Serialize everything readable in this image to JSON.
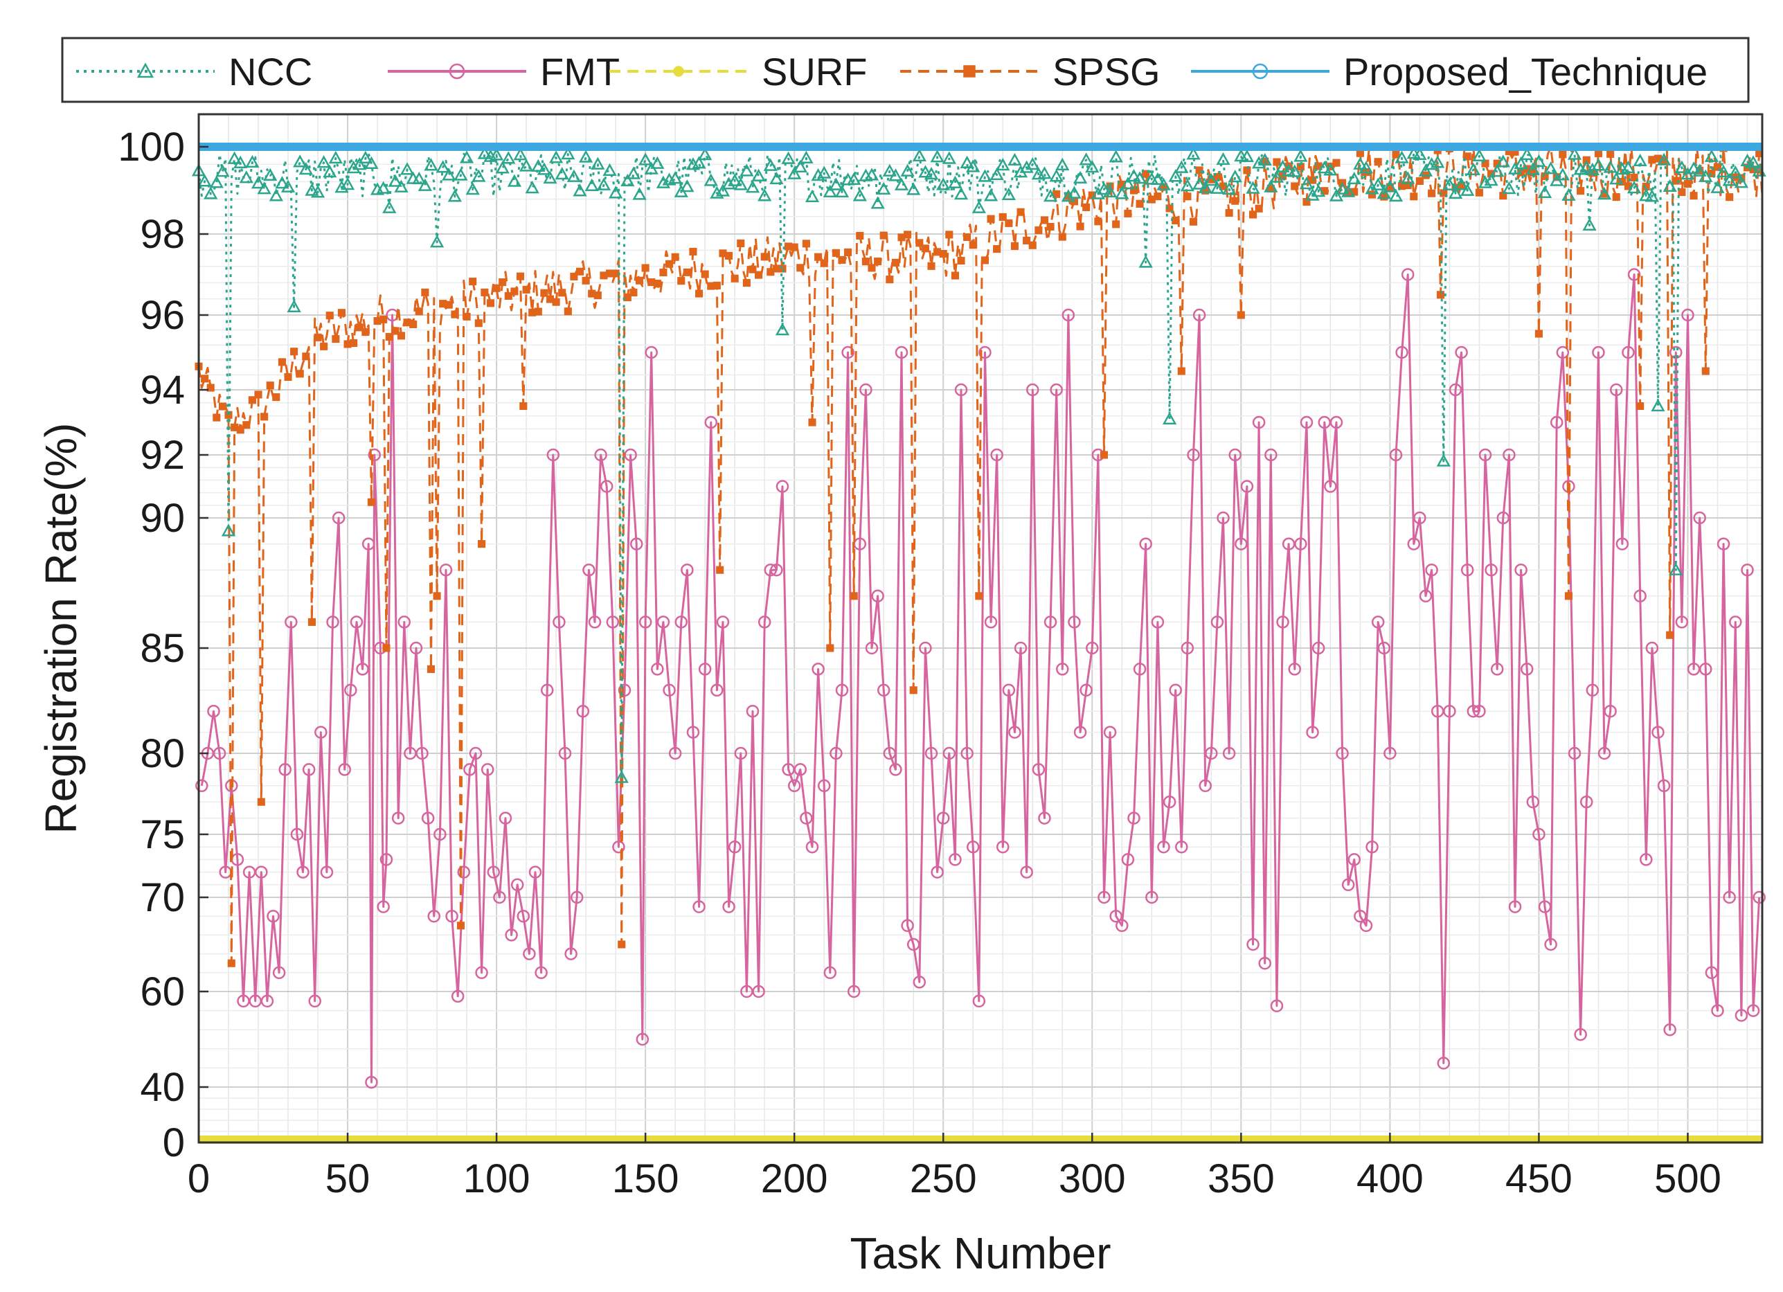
{
  "chart_data": {
    "type": "line",
    "title": "",
    "xlabel": "Task Number",
    "ylabel": "Registration Rate(%)",
    "xlim": [
      0,
      525
    ],
    "x_ticks": [
      0,
      50,
      100,
      150,
      200,
      250,
      300,
      350,
      400,
      450,
      500
    ],
    "y_ticks": [
      0,
      40,
      60,
      70,
      75,
      80,
      85,
      90,
      92,
      94,
      96,
      98,
      100
    ],
    "y_scale": "nonlinear (expanded near 100)",
    "grid": true,
    "legend_position": "top",
    "series": [
      {
        "name": "NCC",
        "color": "#2ca58d",
        "line": "dotted",
        "marker": "triangle",
        "base": 99.4,
        "spread": 0.5,
        "dips": [
          [
            10,
            89.5
          ],
          [
            32,
            96.2
          ],
          [
            64,
            98.6
          ],
          [
            80,
            97.8
          ],
          [
            142,
            78.5
          ],
          [
            196,
            95.6
          ],
          [
            228,
            98.7
          ],
          [
            262,
            98.6
          ],
          [
            318,
            97.3
          ],
          [
            326,
            93.1
          ],
          [
            418,
            91.8
          ],
          [
            467,
            98.2
          ],
          [
            490,
            93.5
          ],
          [
            496,
            88.0
          ]
        ]
      },
      {
        "name": "FMT",
        "color": "#d6649e",
        "line": "solid",
        "marker": "circle",
        "points": [
          [
            1,
            78
          ],
          [
            3,
            80
          ],
          [
            5,
            82
          ],
          [
            7,
            80
          ],
          [
            9,
            72
          ],
          [
            11,
            78
          ],
          [
            13,
            73
          ],
          [
            15,
            58
          ],
          [
            17,
            72
          ],
          [
            19,
            58
          ],
          [
            21,
            72
          ],
          [
            23,
            58
          ],
          [
            25,
            68
          ],
          [
            27,
            62
          ],
          [
            29,
            79
          ],
          [
            31,
            86
          ],
          [
            33,
            75
          ],
          [
            35,
            72
          ],
          [
            37,
            79
          ],
          [
            39,
            58
          ],
          [
            41,
            81
          ],
          [
            43,
            72
          ],
          [
            45,
            86
          ],
          [
            47,
            90
          ],
          [
            49,
            79
          ],
          [
            51,
            83
          ],
          [
            53,
            86
          ],
          [
            55,
            84
          ],
          [
            57,
            89
          ],
          [
            58,
            41
          ],
          [
            59,
            92
          ],
          [
            61,
            85
          ],
          [
            62,
            69
          ],
          [
            63,
            73
          ],
          [
            65,
            96
          ],
          [
            67,
            76
          ],
          [
            69,
            86
          ],
          [
            71,
            80
          ],
          [
            73,
            85
          ],
          [
            75,
            80
          ],
          [
            77,
            76
          ],
          [
            79,
            68
          ],
          [
            81,
            75
          ],
          [
            83,
            88
          ],
          [
            85,
            68
          ],
          [
            87,
            59
          ],
          [
            89,
            72
          ],
          [
            91,
            79
          ],
          [
            93,
            80
          ],
          [
            95,
            62
          ],
          [
            97,
            79
          ],
          [
            99,
            72
          ],
          [
            101,
            70
          ],
          [
            103,
            76
          ],
          [
            105,
            66
          ],
          [
            107,
            71
          ],
          [
            109,
            68
          ],
          [
            111,
            64
          ],
          [
            113,
            72
          ],
          [
            115,
            62
          ],
          [
            117,
            83
          ],
          [
            119,
            92
          ],
          [
            121,
            86
          ],
          [
            123,
            80
          ],
          [
            125,
            64
          ],
          [
            127,
            70
          ],
          [
            129,
            82
          ],
          [
            131,
            88
          ],
          [
            133,
            86
          ],
          [
            135,
            92
          ],
          [
            137,
            91
          ],
          [
            139,
            86
          ],
          [
            141,
            74
          ],
          [
            143,
            83
          ],
          [
            145,
            92
          ],
          [
            147,
            89
          ],
          [
            149,
            50
          ],
          [
            150,
            86
          ],
          [
            152,
            95
          ],
          [
            154,
            84
          ],
          [
            156,
            86
          ],
          [
            158,
            83
          ],
          [
            160,
            80
          ],
          [
            162,
            86
          ],
          [
            164,
            88
          ],
          [
            166,
            81
          ],
          [
            168,
            69
          ],
          [
            170,
            84
          ],
          [
            172,
            93
          ],
          [
            174,
            83
          ],
          [
            176,
            86
          ],
          [
            178,
            69
          ],
          [
            180,
            74
          ],
          [
            182,
            80
          ],
          [
            184,
            60
          ],
          [
            186,
            82
          ],
          [
            188,
            60
          ],
          [
            190,
            86
          ],
          [
            192,
            88
          ],
          [
            194,
            88
          ],
          [
            196,
            91
          ],
          [
            198,
            79
          ],
          [
            200,
            78
          ],
          [
            202,
            79
          ],
          [
            204,
            76
          ],
          [
            206,
            74
          ],
          [
            208,
            84
          ],
          [
            210,
            78
          ],
          [
            212,
            62
          ],
          [
            214,
            80
          ],
          [
            216,
            83
          ],
          [
            218,
            95
          ],
          [
            220,
            60
          ],
          [
            222,
            89
          ],
          [
            224,
            94
          ],
          [
            226,
            85
          ],
          [
            228,
            87
          ],
          [
            230,
            83
          ],
          [
            232,
            80
          ],
          [
            234,
            79
          ],
          [
            236,
            95
          ],
          [
            238,
            67
          ],
          [
            240,
            65
          ],
          [
            242,
            61
          ],
          [
            244,
            85
          ],
          [
            246,
            80
          ],
          [
            248,
            72
          ],
          [
            250,
            76
          ],
          [
            252,
            80
          ],
          [
            254,
            73
          ],
          [
            256,
            94
          ],
          [
            258,
            80
          ],
          [
            260,
            74
          ],
          [
            262,
            58
          ],
          [
            264,
            95
          ],
          [
            266,
            86
          ],
          [
            268,
            92
          ],
          [
            270,
            74
          ],
          [
            272,
            83
          ],
          [
            274,
            81
          ],
          [
            276,
            85
          ],
          [
            278,
            72
          ],
          [
            280,
            94
          ],
          [
            282,
            79
          ],
          [
            284,
            76
          ],
          [
            286,
            86
          ],
          [
            288,
            94
          ],
          [
            290,
            84
          ],
          [
            292,
            96
          ],
          [
            294,
            86
          ],
          [
            296,
            81
          ],
          [
            298,
            83
          ],
          [
            300,
            85
          ],
          [
            302,
            92
          ],
          [
            304,
            70
          ],
          [
            306,
            81
          ],
          [
            308,
            68
          ],
          [
            310,
            67
          ],
          [
            312,
            73
          ],
          [
            314,
            76
          ],
          [
            316,
            84
          ],
          [
            318,
            89
          ],
          [
            320,
            70
          ],
          [
            322,
            86
          ],
          [
            324,
            74
          ],
          [
            326,
            77
          ],
          [
            328,
            83
          ],
          [
            330,
            74
          ],
          [
            332,
            85
          ],
          [
            334,
            92
          ],
          [
            336,
            96
          ],
          [
            338,
            78
          ],
          [
            340,
            80
          ],
          [
            342,
            86
          ],
          [
            344,
            90
          ],
          [
            346,
            80
          ],
          [
            348,
            92
          ],
          [
            350,
            89
          ],
          [
            352,
            91
          ],
          [
            354,
            65
          ],
          [
            356,
            93
          ],
          [
            358,
            63
          ],
          [
            360,
            92
          ],
          [
            362,
            57
          ],
          [
            364,
            86
          ],
          [
            366,
            89
          ],
          [
            368,
            84
          ],
          [
            370,
            89
          ],
          [
            372,
            93
          ],
          [
            374,
            81
          ],
          [
            376,
            85
          ],
          [
            378,
            93
          ],
          [
            380,
            91
          ],
          [
            382,
            93
          ],
          [
            384,
            80
          ],
          [
            386,
            71
          ],
          [
            388,
            73
          ],
          [
            390,
            68
          ],
          [
            392,
            67
          ],
          [
            394,
            74
          ],
          [
            396,
            86
          ],
          [
            398,
            85
          ],
          [
            400,
            80
          ],
          [
            402,
            92
          ],
          [
            404,
            95
          ],
          [
            406,
            97
          ],
          [
            408,
            89
          ],
          [
            410,
            90
          ],
          [
            412,
            87
          ],
          [
            414,
            88
          ],
          [
            416,
            82
          ],
          [
            418,
            45
          ],
          [
            420,
            82
          ],
          [
            422,
            94
          ],
          [
            424,
            95
          ],
          [
            426,
            88
          ],
          [
            428,
            82
          ],
          [
            430,
            82
          ],
          [
            432,
            92
          ],
          [
            434,
            88
          ],
          [
            436,
            84
          ],
          [
            438,
            90
          ],
          [
            440,
            92
          ],
          [
            442,
            69
          ],
          [
            444,
            88
          ],
          [
            446,
            84
          ],
          [
            448,
            77
          ],
          [
            450,
            75
          ],
          [
            452,
            69
          ],
          [
            454,
            65
          ],
          [
            456,
            93
          ],
          [
            458,
            95
          ],
          [
            460,
            91
          ],
          [
            462,
            80
          ],
          [
            464,
            51
          ],
          [
            466,
            77
          ],
          [
            468,
            83
          ],
          [
            470,
            95
          ],
          [
            472,
            80
          ],
          [
            474,
            82
          ],
          [
            476,
            94
          ],
          [
            478,
            89
          ],
          [
            480,
            95
          ],
          [
            482,
            97
          ],
          [
            484,
            87
          ],
          [
            486,
            73
          ],
          [
            488,
            85
          ],
          [
            490,
            81
          ],
          [
            492,
            78
          ],
          [
            494,
            52
          ],
          [
            496,
            95
          ],
          [
            498,
            86
          ],
          [
            500,
            96
          ],
          [
            502,
            84
          ],
          [
            504,
            90
          ],
          [
            506,
            84
          ],
          [
            508,
            62
          ],
          [
            510,
            56
          ],
          [
            512,
            89
          ],
          [
            514,
            70
          ],
          [
            516,
            86
          ],
          [
            518,
            55
          ],
          [
            520,
            88
          ],
          [
            522,
            56
          ],
          [
            524,
            70
          ]
        ]
      },
      {
        "name": "SURF",
        "color": "#e6dc3c",
        "line": "dashed",
        "marker": "star",
        "constant": 2
      },
      {
        "name": "SPSG",
        "color": "#e0641a",
        "line": "dashed",
        "marker": "square",
        "trend": [
          [
            0,
            94.5
          ],
          [
            10,
            93.0
          ],
          [
            20,
            93.5
          ],
          [
            40,
            95.5
          ],
          [
            60,
            96.0
          ],
          [
            100,
            96.5
          ],
          [
            150,
            97.0
          ],
          [
            200,
            97.5
          ],
          [
            250,
            97.5
          ],
          [
            300,
            98.8
          ],
          [
            350,
            99.0
          ],
          [
            380,
            99.5
          ],
          [
            525,
            99.5
          ]
        ],
        "spread": 0.6,
        "dips": [
          [
            11,
            63
          ],
          [
            21,
            77
          ],
          [
            38,
            86
          ],
          [
            58,
            90.5
          ],
          [
            63,
            85
          ],
          [
            78,
            84
          ],
          [
            80,
            87
          ],
          [
            88,
            67
          ],
          [
            95,
            89
          ],
          [
            109,
            93.5
          ],
          [
            142,
            65
          ],
          [
            175,
            88
          ],
          [
            206,
            93
          ],
          [
            212,
            85
          ],
          [
            220,
            87
          ],
          [
            240,
            83
          ],
          [
            262,
            87
          ],
          [
            304,
            92
          ],
          [
            330,
            94.5
          ],
          [
            350,
            96
          ],
          [
            417,
            96.5
          ],
          [
            450,
            95.5
          ],
          [
            460,
            87
          ],
          [
            484,
            93.5
          ],
          [
            494,
            85.5
          ],
          [
            506,
            94.5
          ]
        ]
      },
      {
        "name": "Proposed_Technique",
        "color": "#3da8e0",
        "line": "solid",
        "marker": "circle",
        "constant": 100
      }
    ]
  }
}
